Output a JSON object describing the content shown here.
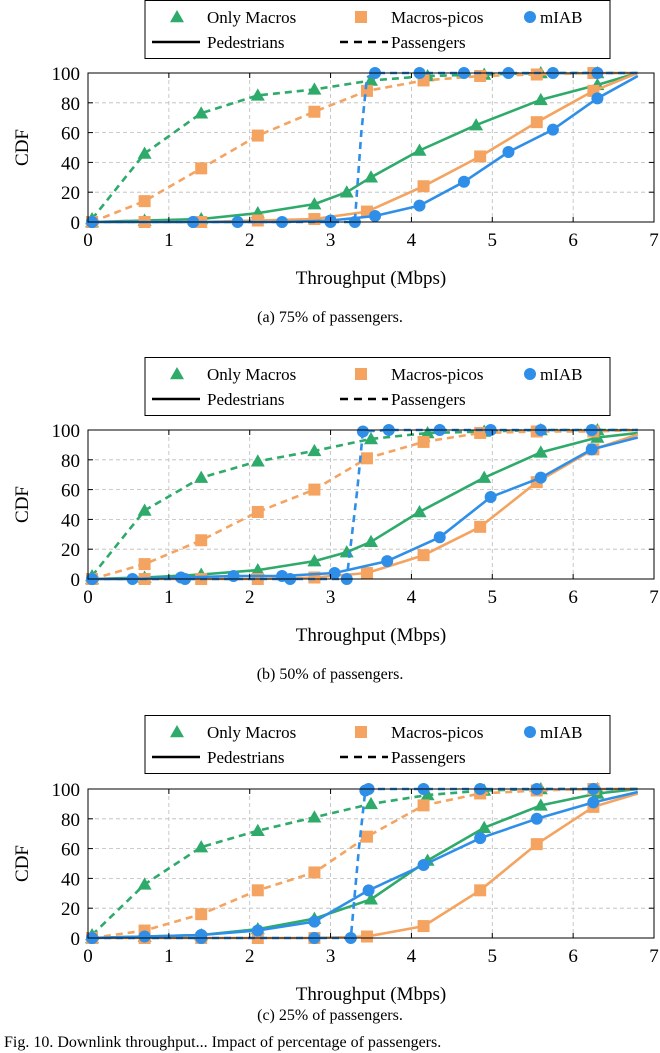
{
  "figure_caption": "Fig. 10.    Downlink throughput... Impact of percentage of passengers.",
  "colors": {
    "only_macros": "#2eaa6a",
    "macros_picos": "#f4a460",
    "miab": "#2f8fe8",
    "axis": "#000000",
    "grid": "#bbbbbb"
  },
  "legend": {
    "only_macros": "Only Macros",
    "macros_picos": "Macros-picos",
    "miab": "mIAB",
    "pedestrians": "Pedestrians",
    "passengers": "Passengers"
  },
  "chart_data": [
    {
      "type": "line",
      "caption": "(a) 75% of passengers.",
      "xlabel": "Throughput (Mbps)",
      "ylabel": "CDF",
      "xlim": [
        0,
        7
      ],
      "ylim": [
        0,
        100
      ],
      "xticks": [
        "0",
        "1",
        "2",
        "3",
        "4",
        "5",
        "6",
        "7"
      ],
      "yticks": [
        "0",
        "20",
        "40",
        "60",
        "80",
        "100"
      ],
      "grid": true,
      "legend_position": "top-center",
      "series": [
        {
          "name": "Only Macros",
          "variant": "Passengers",
          "marker": "triangle",
          "color": "only_macros",
          "points": [
            [
              0.05,
              2
            ],
            [
              0.7,
              46
            ],
            [
              1.4,
              73
            ],
            [
              2.1,
              85
            ],
            [
              2.8,
              89
            ],
            [
              3.5,
              95
            ],
            [
              4.2,
              98
            ],
            [
              4.9,
              99
            ],
            [
              5.6,
              100
            ],
            [
              6.3,
              100
            ],
            [
              6.8,
              100
            ]
          ]
        },
        {
          "name": "Only Macros",
          "variant": "Pedestrians",
          "marker": "triangle",
          "color": "only_macros",
          "points": [
            [
              0.05,
              0
            ],
            [
              0.7,
              1
            ],
            [
              1.4,
              2
            ],
            [
              2.1,
              6
            ],
            [
              2.8,
              12
            ],
            [
              3.2,
              20
            ],
            [
              3.5,
              30
            ],
            [
              4.1,
              48
            ],
            [
              4.8,
              65
            ],
            [
              5.6,
              82
            ],
            [
              6.3,
              92
            ],
            [
              6.8,
              100
            ]
          ]
        },
        {
          "name": "Macros-picos",
          "variant": "Passengers",
          "marker": "square",
          "color": "macros_picos",
          "points": [
            [
              0.05,
              0
            ],
            [
              0.7,
              14
            ],
            [
              1.4,
              36
            ],
            [
              2.1,
              58
            ],
            [
              2.8,
              74
            ],
            [
              3.45,
              88
            ],
            [
              4.15,
              95
            ],
            [
              4.85,
              98
            ],
            [
              5.55,
              99
            ],
            [
              6.25,
              100
            ],
            [
              6.8,
              100
            ]
          ]
        },
        {
          "name": "Macros-picos",
          "variant": "Pedestrians",
          "marker": "square",
          "color": "macros_picos",
          "points": [
            [
              0.05,
              0
            ],
            [
              0.7,
              0
            ],
            [
              1.4,
              0
            ],
            [
              2.1,
              1
            ],
            [
              2.8,
              2
            ],
            [
              3.45,
              7
            ],
            [
              4.15,
              24
            ],
            [
              4.85,
              44
            ],
            [
              5.55,
              67
            ],
            [
              6.25,
              88
            ],
            [
              6.8,
              100
            ]
          ]
        },
        {
          "name": "mIAB",
          "variant": "Passengers",
          "marker": "circle",
          "color": "miab",
          "points": [
            [
              0.05,
              0
            ],
            [
              1.3,
              0
            ],
            [
              3.0,
              0
            ],
            [
              3.3,
              0
            ],
            [
              3.38,
              60
            ],
            [
              3.45,
              97
            ],
            [
              3.55,
              100
            ],
            [
              4.1,
              100
            ],
            [
              4.65,
              100
            ],
            [
              5.2,
              100
            ],
            [
              5.75,
              100
            ],
            [
              6.3,
              100
            ],
            [
              6.8,
              100
            ]
          ]
        },
        {
          "name": "mIAB",
          "variant": "Pedestrians",
          "marker": "circle",
          "color": "miab",
          "points": [
            [
              0.05,
              0
            ],
            [
              1.3,
              0
            ],
            [
              1.85,
              0
            ],
            [
              2.4,
              0
            ],
            [
              3.0,
              1
            ],
            [
              3.55,
              4
            ],
            [
              4.1,
              11
            ],
            [
              4.65,
              27
            ],
            [
              5.2,
              47
            ],
            [
              5.75,
              62
            ],
            [
              6.3,
              83
            ],
            [
              6.8,
              98
            ]
          ]
        }
      ]
    },
    {
      "type": "line",
      "caption": "(b) 50% of passengers.",
      "xlabel": "Throughput (Mbps)",
      "ylabel": "CDF",
      "xlim": [
        0,
        7
      ],
      "ylim": [
        0,
        100
      ],
      "xticks": [
        "0",
        "1",
        "2",
        "3",
        "4",
        "5",
        "6",
        "7"
      ],
      "yticks": [
        "0",
        "20",
        "40",
        "60",
        "80",
        "100"
      ],
      "grid": true,
      "legend_position": "top-center",
      "series": [
        {
          "name": "Only Macros",
          "variant": "Passengers",
          "marker": "triangle",
          "color": "only_macros",
          "points": [
            [
              0.05,
              2
            ],
            [
              0.7,
              46
            ],
            [
              1.4,
              68
            ],
            [
              2.1,
              79
            ],
            [
              2.8,
              86
            ],
            [
              3.5,
              94
            ],
            [
              4.2,
              98
            ],
            [
              4.9,
              99
            ],
            [
              5.6,
              100
            ],
            [
              6.3,
              100
            ],
            [
              6.8,
              100
            ]
          ]
        },
        {
          "name": "Only Macros",
          "variant": "Pedestrians",
          "marker": "triangle",
          "color": "only_macros",
          "points": [
            [
              0.05,
              0
            ],
            [
              0.7,
              1
            ],
            [
              1.4,
              3
            ],
            [
              2.1,
              6
            ],
            [
              2.8,
              12
            ],
            [
              3.2,
              18
            ],
            [
              3.5,
              25
            ],
            [
              4.1,
              45
            ],
            [
              4.9,
              68
            ],
            [
              5.6,
              85
            ],
            [
              6.3,
              95
            ],
            [
              6.8,
              98
            ]
          ]
        },
        {
          "name": "Macros-picos",
          "variant": "Passengers",
          "marker": "square",
          "color": "macros_picos",
          "points": [
            [
              0.05,
              0
            ],
            [
              0.7,
              10
            ],
            [
              1.4,
              26
            ],
            [
              2.1,
              45
            ],
            [
              2.8,
              60
            ],
            [
              3.45,
              81
            ],
            [
              4.15,
              92
            ],
            [
              4.85,
              98
            ],
            [
              5.55,
              99
            ],
            [
              6.25,
              99
            ],
            [
              6.8,
              100
            ]
          ]
        },
        {
          "name": "Macros-picos",
          "variant": "Pedestrians",
          "marker": "square",
          "color": "macros_picos",
          "points": [
            [
              0.05,
              0
            ],
            [
              0.7,
              0
            ],
            [
              1.4,
              0
            ],
            [
              2.1,
              0
            ],
            [
              2.8,
              1
            ],
            [
              3.45,
              4
            ],
            [
              4.15,
              16
            ],
            [
              4.85,
              35
            ],
            [
              5.55,
              65
            ],
            [
              6.25,
              87
            ],
            [
              6.8,
              97
            ]
          ]
        },
        {
          "name": "mIAB",
          "variant": "Passengers",
          "marker": "circle",
          "color": "miab",
          "points": [
            [
              0.05,
              0
            ],
            [
              1.2,
              0
            ],
            [
              2.5,
              0
            ],
            [
              3.2,
              0
            ],
            [
              3.33,
              60
            ],
            [
              3.4,
              99
            ],
            [
              3.72,
              100
            ],
            [
              4.35,
              100
            ],
            [
              4.98,
              100
            ],
            [
              5.6,
              100
            ],
            [
              6.23,
              100
            ],
            [
              6.8,
              100
            ]
          ]
        },
        {
          "name": "mIAB",
          "variant": "Pedestrians",
          "marker": "circle",
          "color": "miab",
          "points": [
            [
              0.05,
              0
            ],
            [
              0.55,
              0
            ],
            [
              1.15,
              1
            ],
            [
              1.8,
              2
            ],
            [
              2.4,
              2
            ],
            [
              3.05,
              4
            ],
            [
              3.7,
              12
            ],
            [
              4.35,
              28
            ],
            [
              4.98,
              55
            ],
            [
              5.6,
              68
            ],
            [
              6.23,
              87
            ],
            [
              6.8,
              95
            ]
          ]
        }
      ]
    },
    {
      "type": "line",
      "caption": "(c) 25% of passengers.",
      "xlabel": "Throughput (Mbps)",
      "ylabel": "CDF",
      "xlim": [
        0,
        7
      ],
      "ylim": [
        0,
        100
      ],
      "xticks": [
        "0",
        "1",
        "2",
        "3",
        "4",
        "5",
        "6",
        "7"
      ],
      "yticks": [
        "0",
        "20",
        "40",
        "60",
        "80",
        "100"
      ],
      "grid": true,
      "legend_position": "top-center",
      "series": [
        {
          "name": "Only Macros",
          "variant": "Passengers",
          "marker": "triangle",
          "color": "only_macros",
          "points": [
            [
              0.05,
              2
            ],
            [
              0.7,
              36
            ],
            [
              1.4,
              61
            ],
            [
              2.1,
              72
            ],
            [
              2.8,
              81
            ],
            [
              3.5,
              90
            ],
            [
              4.2,
              96
            ],
            [
              4.9,
              99
            ],
            [
              5.6,
              100
            ],
            [
              6.3,
              100
            ],
            [
              6.8,
              100
            ]
          ]
        },
        {
          "name": "Only Macros",
          "variant": "Pedestrians",
          "marker": "triangle",
          "color": "only_macros",
          "points": [
            [
              0.05,
              0
            ],
            [
              0.7,
              1
            ],
            [
              1.4,
              2
            ],
            [
              2.1,
              6
            ],
            [
              2.8,
              13
            ],
            [
              3.5,
              26
            ],
            [
              4.2,
              52
            ],
            [
              4.9,
              74
            ],
            [
              5.6,
              89
            ],
            [
              6.3,
              97
            ],
            [
              6.8,
              100
            ]
          ]
        },
        {
          "name": "Macros-picos",
          "variant": "Passengers",
          "marker": "square",
          "color": "macros_picos",
          "points": [
            [
              0.05,
              0
            ],
            [
              0.7,
              5
            ],
            [
              1.4,
              16
            ],
            [
              2.1,
              32
            ],
            [
              2.8,
              44
            ],
            [
              3.45,
              68
            ],
            [
              4.15,
              89
            ],
            [
              4.85,
              97
            ],
            [
              5.55,
              99
            ],
            [
              6.25,
              100
            ],
            [
              6.8,
              100
            ]
          ]
        },
        {
          "name": "Macros-picos",
          "variant": "Pedestrians",
          "marker": "square",
          "color": "macros_picos",
          "points": [
            [
              0.05,
              0
            ],
            [
              0.7,
              0
            ],
            [
              1.4,
              0
            ],
            [
              2.1,
              0
            ],
            [
              2.8,
              0
            ],
            [
              3.45,
              1
            ],
            [
              4.15,
              8
            ],
            [
              4.85,
              32
            ],
            [
              5.55,
              63
            ],
            [
              6.25,
              88
            ],
            [
              6.8,
              97
            ]
          ]
        },
        {
          "name": "mIAB",
          "variant": "Passengers",
          "marker": "circle",
          "color": "miab",
          "points": [
            [
              0.05,
              0
            ],
            [
              1.4,
              0
            ],
            [
              2.8,
              0
            ],
            [
              3.25,
              0
            ],
            [
              3.35,
              60
            ],
            [
              3.43,
              99
            ],
            [
              3.47,
              100
            ],
            [
              4.15,
              100
            ],
            [
              4.85,
              100
            ],
            [
              5.55,
              100
            ],
            [
              6.25,
              100
            ],
            [
              6.8,
              100
            ]
          ]
        },
        {
          "name": "mIAB",
          "variant": "Pedestrians",
          "marker": "circle",
          "color": "miab",
          "points": [
            [
              0.05,
              0
            ],
            [
              0.7,
              1
            ],
            [
              1.4,
              2
            ],
            [
              2.1,
              5
            ],
            [
              2.8,
              11
            ],
            [
              3.47,
              32
            ],
            [
              4.15,
              49
            ],
            [
              4.85,
              67
            ],
            [
              5.55,
              80
            ],
            [
              6.25,
              91
            ],
            [
              6.8,
              98
            ]
          ]
        }
      ]
    }
  ]
}
